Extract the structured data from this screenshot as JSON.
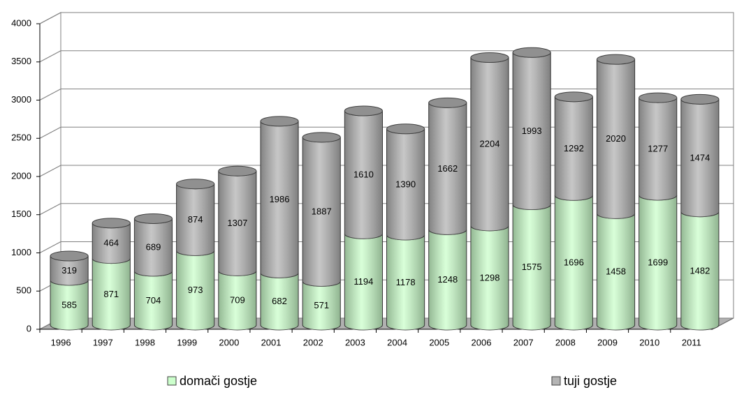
{
  "chart_data": {
    "type": "bar",
    "stacked": true,
    "categories": [
      "1996",
      "1997",
      "1998",
      "1999",
      "2000",
      "2001",
      "2002",
      "2003",
      "2004",
      "2005",
      "2006",
      "2007",
      "2008",
      "2009",
      "2010",
      "2011"
    ],
    "series": [
      {
        "name": "domači gostje",
        "color": "#ccffcc",
        "values": [
          585,
          871,
          704,
          973,
          709,
          682,
          571,
          1194,
          1178,
          1248,
          1298,
          1575,
          1696,
          1458,
          1699,
          1482
        ]
      },
      {
        "name": "tuji gostje",
        "color": "#b4b4b4",
        "values": [
          319,
          464,
          689,
          874,
          1307,
          1986,
          1887,
          1610,
          1390,
          1662,
          2204,
          1993,
          1292,
          2020,
          1277,
          1474
        ]
      }
    ],
    "ylim": [
      0,
      4000
    ],
    "yticks": [
      0,
      500,
      1000,
      1500,
      2000,
      2500,
      3000,
      3500,
      4000
    ],
    "grid": true
  }
}
